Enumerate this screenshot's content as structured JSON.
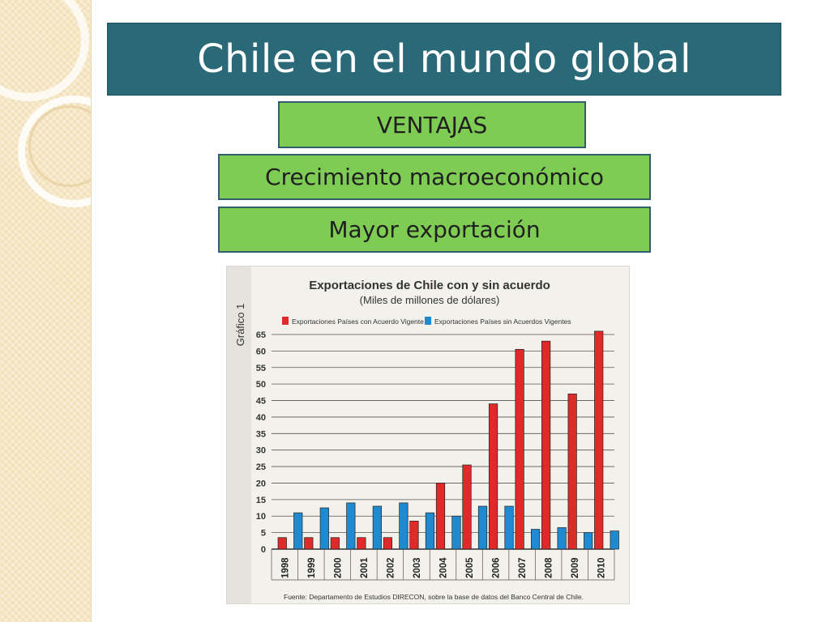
{
  "slide": {
    "title": "Chile en el mundo global",
    "tags": [
      "VENTAJAS",
      "Crecimiento macroeconómico",
      "Mayor exportación"
    ]
  },
  "colors": {
    "title_bar": "#2a6a78",
    "tag_fill": "#7fcc55",
    "series_with": "#e02a2a",
    "series_without": "#1f8ad0"
  },
  "chart_data": {
    "type": "bar",
    "side_label": "Gráfico 1",
    "title": "Exportaciones de Chile con y sin acuerdo",
    "subtitle": "(Miles de millones de dólares)",
    "categories": [
      "1998",
      "1999",
      "2000",
      "2001",
      "2002",
      "2003",
      "2004",
      "2005",
      "2006",
      "2007",
      "2008",
      "2009",
      "2010"
    ],
    "series": [
      {
        "name": "Exportaciones Países con Acuerdo Vigente",
        "color": "#e02a2a",
        "values": [
          3.5,
          3.5,
          3.5,
          3.5,
          3.5,
          8.5,
          20,
          25.5,
          44,
          60.5,
          63,
          47,
          66
        ]
      },
      {
        "name": "Exportaciones Países sin Acuerdos Vigentes",
        "color": "#1f8ad0",
        "values": [
          11,
          12.5,
          14,
          13,
          14,
          11,
          10,
          13,
          13,
          6,
          6.5,
          5,
          5.5
        ]
      }
    ],
    "y_ticks": [
      0,
      5,
      10,
      15,
      20,
      25,
      30,
      35,
      40,
      45,
      50,
      55,
      60,
      65
    ],
    "ylim": [
      0,
      65
    ],
    "grid": true,
    "legend": "top",
    "source": "Fuente: Departamento de Estudios DIRECON, sobre la base de datos del Banco Central de Chile."
  }
}
